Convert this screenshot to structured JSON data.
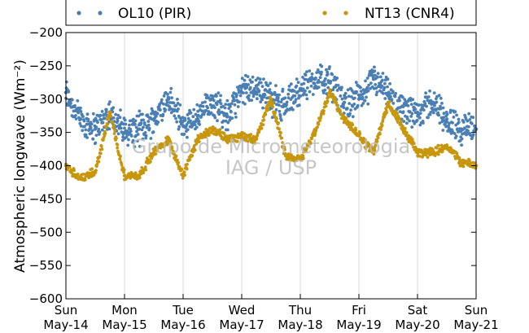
{
  "chart_data": {
    "type": "scatter",
    "title": "",
    "ylabel": "Atmospheric longwave (Wm⁻²)",
    "xlabel": "",
    "ylim": [
      -600,
      -200
    ],
    "yticks": [
      -600,
      -550,
      -500,
      -450,
      -400,
      -350,
      -300,
      -250,
      -200
    ],
    "yticklabels": [
      "−600",
      "−550",
      "−500",
      "−450",
      "−400",
      "−350",
      "−300",
      "−250",
      "−200"
    ],
    "xlim_days": [
      0,
      7
    ],
    "x_ticks": [
      {
        "day": "Sun",
        "date": "May-14"
      },
      {
        "day": "Mon",
        "date": "May-15"
      },
      {
        "day": "Tue",
        "date": "May-16"
      },
      {
        "day": "Wed",
        "date": "May-17"
      },
      {
        "day": "Thu",
        "date": "May-18"
      },
      {
        "day": "Fri",
        "date": "May-19"
      },
      {
        "day": "Sat",
        "date": "May-20"
      },
      {
        "day": "Sun",
        "date": "May-21"
      }
    ],
    "grid": "vertical",
    "legend_position": "top",
    "watermark": [
      "Grupo de Micrometeorologia",
      "IAG / USP"
    ],
    "series": [
      {
        "name": "OL10 (PIR)",
        "color": "#4a7fb5",
        "x": [
          0.0,
          0.25,
          0.5,
          0.75,
          1.0,
          1.25,
          1.5,
          1.75,
          2.0,
          2.25,
          2.5,
          2.75,
          3.0,
          3.25,
          3.5,
          3.75,
          4.0,
          4.25,
          4.5,
          4.75,
          5.0,
          5.25,
          5.5,
          5.75,
          6.0,
          6.25,
          6.5,
          6.75,
          7.0
        ],
        "y": [
          -290,
          -330,
          -345,
          -320,
          -350,
          -345,
          -330,
          -300,
          -340,
          -330,
          -300,
          -325,
          -290,
          -280,
          -300,
          -310,
          -285,
          -270,
          -275,
          -305,
          -300,
          -270,
          -295,
          -320,
          -320,
          -305,
          -330,
          -345,
          -345
        ]
      },
      {
        "name": "NT13 (CNR4)",
        "color": "#c8960c",
        "x": [
          0.0,
          0.25,
          0.5,
          0.75,
          1.0,
          1.25,
          1.5,
          1.75,
          2.0,
          2.25,
          2.5,
          2.75,
          3.0,
          3.25,
          3.5,
          3.75,
          4.0,
          4.25,
          4.5,
          4.75,
          5.0,
          5.25,
          5.5,
          5.75,
          6.0,
          6.25,
          6.5,
          6.75,
          7.0
        ],
        "y": [
          -400,
          -420,
          -410,
          -320,
          -415,
          -415,
          -380,
          -360,
          -415,
          -360,
          -345,
          -360,
          -355,
          -360,
          -300,
          -385,
          -390,
          -350,
          -290,
          -330,
          -355,
          -380,
          -305,
          -345,
          -380,
          -380,
          -370,
          -395,
          -400
        ]
      }
    ]
  }
}
